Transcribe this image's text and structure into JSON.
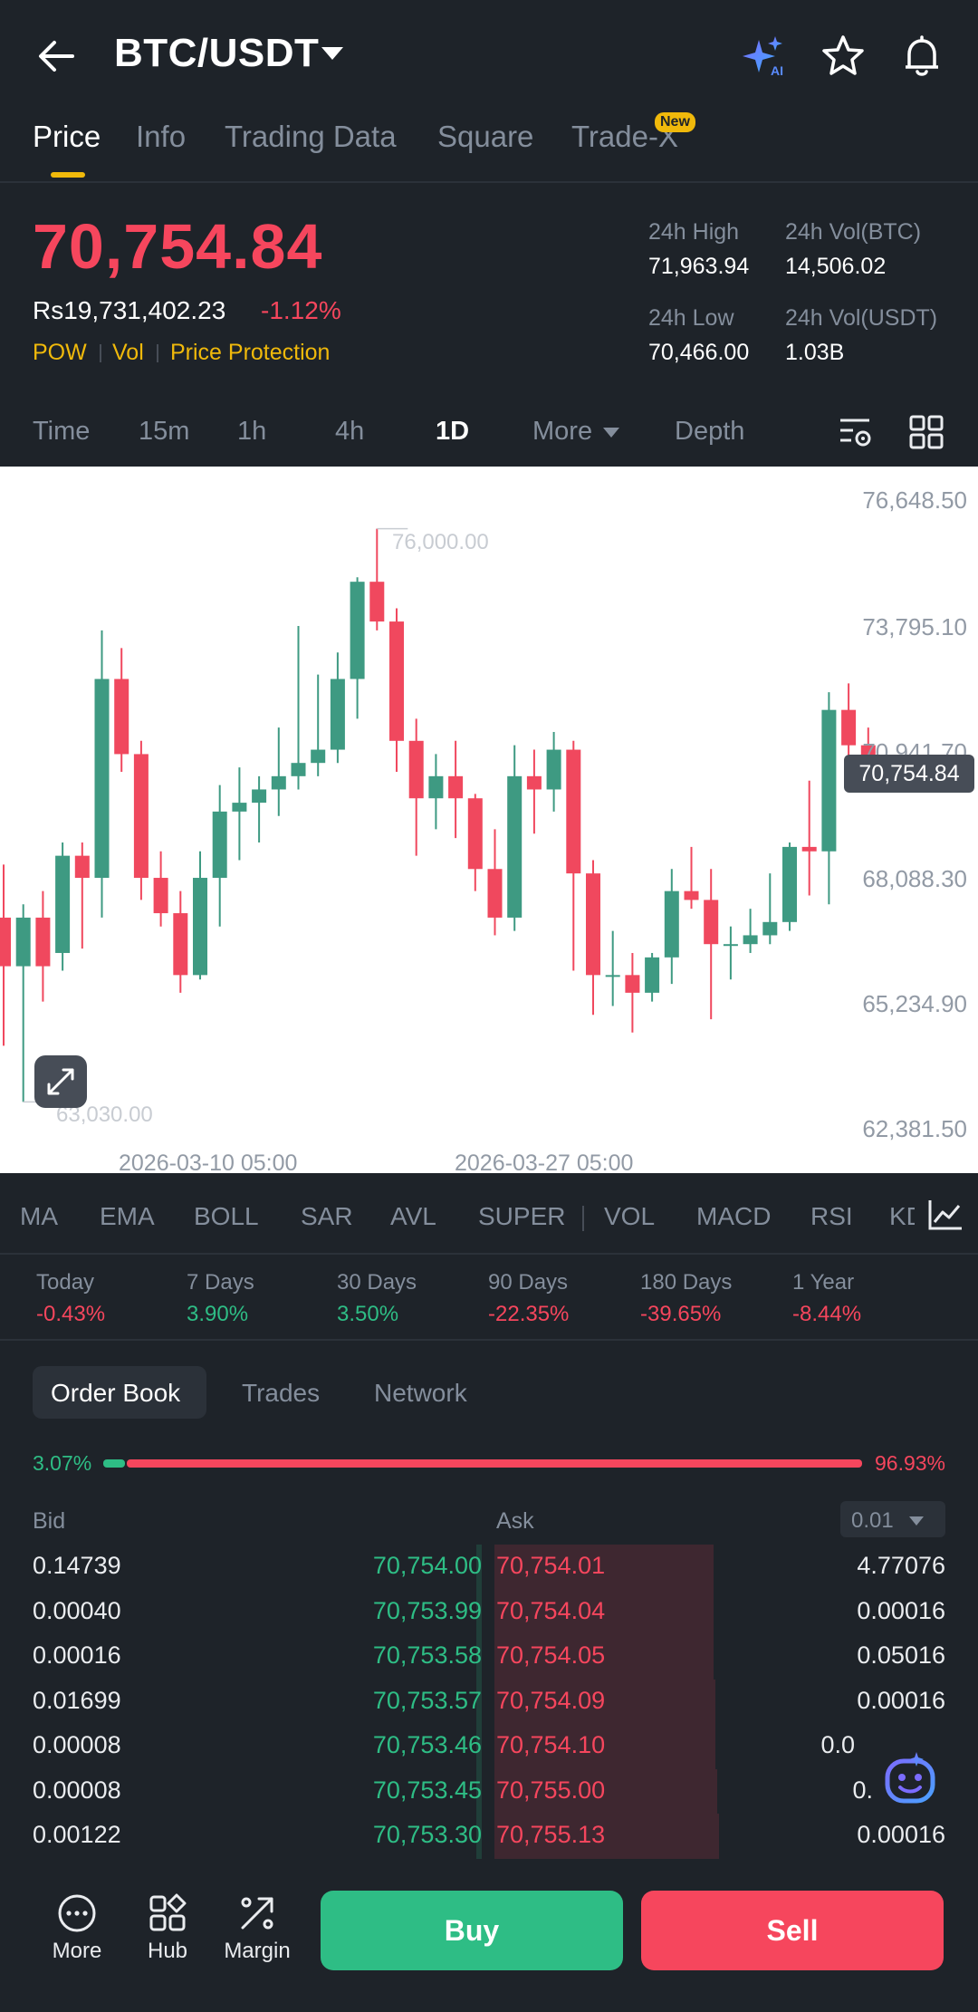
{
  "header": {
    "pair": "BTC/USDT",
    "icons": [
      "back-arrow-icon",
      "ai-sparkle-icon",
      "star-icon",
      "bell-icon"
    ]
  },
  "tabs": [
    {
      "label": "Price",
      "active": true
    },
    {
      "label": "Info"
    },
    {
      "label": "Trading Data"
    },
    {
      "label": "Square"
    },
    {
      "label": "Trade-X",
      "badge": "New"
    }
  ],
  "price": {
    "last": "70,754.84",
    "fiat": "Rs19,731,402.23",
    "change": "-1.12%",
    "tags": [
      "POW",
      "Vol",
      "Price Protection"
    ]
  },
  "stats": {
    "high_label": "24h High",
    "high": "71,963.94",
    "volbtc_label": "24h Vol(BTC)",
    "volbtc": "14,506.02",
    "low_label": "24h Low",
    "low": "70,466.00",
    "volusdt_label": "24h Vol(USDT)",
    "volusdt": "1.03B"
  },
  "intervals": {
    "items": [
      "Time",
      "15m",
      "1h",
      "4h",
      "1D",
      "More",
      "Depth"
    ],
    "active": "1D"
  },
  "chart_data": {
    "type": "candlestick",
    "y_ticks": [
      "76,648.50",
      "73,795.10",
      "70,941.70",
      "68,088.30",
      "65,234.90",
      "62,381.50"
    ],
    "ylim": [
      62381.5,
      76648.5
    ],
    "x_ticks": [
      "2026-03-10 05:00",
      "2026-03-27 05:00"
    ],
    "current_price": "70,754.84",
    "high_marker": "76,000.00",
    "low_marker": "63,030.00",
    "colors": {
      "up": "#3e9a82",
      "down": "#f0485e"
    },
    "candles": [
      {
        "o": 67200,
        "h": 68400,
        "l": 64300,
        "c": 66100
      },
      {
        "o": 66100,
        "h": 67500,
        "l": 63030,
        "c": 67200
      },
      {
        "o": 67200,
        "h": 67800,
        "l": 65300,
        "c": 66100
      },
      {
        "o": 66400,
        "h": 68900,
        "l": 66000,
        "c": 68600
      },
      {
        "o": 68600,
        "h": 68900,
        "l": 66500,
        "c": 68100
      },
      {
        "o": 68100,
        "h": 73700,
        "l": 67200,
        "c": 72600
      },
      {
        "o": 72600,
        "h": 73300,
        "l": 70500,
        "c": 70900
      },
      {
        "o": 70900,
        "h": 71200,
        "l": 67600,
        "c": 68100
      },
      {
        "o": 68100,
        "h": 68700,
        "l": 67000,
        "c": 67300
      },
      {
        "o": 67300,
        "h": 67800,
        "l": 65500,
        "c": 65900
      },
      {
        "o": 65900,
        "h": 68700,
        "l": 65800,
        "c": 68100
      },
      {
        "o": 68100,
        "h": 70200,
        "l": 67000,
        "c": 69600
      },
      {
        "o": 69600,
        "h": 70600,
        "l": 68500,
        "c": 69800
      },
      {
        "o": 69800,
        "h": 70400,
        "l": 68900,
        "c": 70100
      },
      {
        "o": 70100,
        "h": 71500,
        "l": 69500,
        "c": 70400
      },
      {
        "o": 70400,
        "h": 73800,
        "l": 70100,
        "c": 70700
      },
      {
        "o": 70700,
        "h": 72700,
        "l": 70400,
        "c": 71000
      },
      {
        "o": 71000,
        "h": 73200,
        "l": 70700,
        "c": 72600
      },
      {
        "o": 72600,
        "h": 74900,
        "l": 71700,
        "c": 74800
      },
      {
        "o": 74800,
        "h": 76000,
        "l": 73700,
        "c": 73900
      },
      {
        "o": 73900,
        "h": 74200,
        "l": 70500,
        "c": 71200
      },
      {
        "o": 71200,
        "h": 71700,
        "l": 68600,
        "c": 69900
      },
      {
        "o": 69900,
        "h": 70900,
        "l": 69200,
        "c": 70400
      },
      {
        "o": 70400,
        "h": 71200,
        "l": 69000,
        "c": 69900
      },
      {
        "o": 69900,
        "h": 70000,
        "l": 67800,
        "c": 68300
      },
      {
        "o": 68300,
        "h": 69200,
        "l": 66800,
        "c": 67200
      },
      {
        "o": 67200,
        "h": 71100,
        "l": 66900,
        "c": 70400
      },
      {
        "o": 70400,
        "h": 71000,
        "l": 69100,
        "c": 70100
      },
      {
        "o": 70100,
        "h": 71400,
        "l": 69600,
        "c": 71000
      },
      {
        "o": 71000,
        "h": 71200,
        "l": 66000,
        "c": 68200
      },
      {
        "o": 68200,
        "h": 68500,
        "l": 65000,
        "c": 65900
      },
      {
        "o": 65900,
        "h": 66900,
        "l": 65200,
        "c": 65900
      },
      {
        "o": 65900,
        "h": 66400,
        "l": 64600,
        "c": 65500
      },
      {
        "o": 65500,
        "h": 66400,
        "l": 65300,
        "c": 66300
      },
      {
        "o": 66300,
        "h": 68300,
        "l": 65700,
        "c": 67800
      },
      {
        "o": 67800,
        "h": 68800,
        "l": 67400,
        "c": 67600
      },
      {
        "o": 67600,
        "h": 68300,
        "l": 64900,
        "c": 66600
      },
      {
        "o": 66600,
        "h": 67000,
        "l": 65800,
        "c": 66600
      },
      {
        "o": 66600,
        "h": 67400,
        "l": 66400,
        "c": 66800
      },
      {
        "o": 66800,
        "h": 68200,
        "l": 66600,
        "c": 67100
      },
      {
        "o": 67100,
        "h": 68900,
        "l": 66900,
        "c": 68800
      },
      {
        "o": 68800,
        "h": 70300,
        "l": 67700,
        "c": 68700
      },
      {
        "o": 68700,
        "h": 72300,
        "l": 67500,
        "c": 71900
      },
      {
        "o": 71900,
        "h": 72500,
        "l": 70800,
        "c": 71100
      },
      {
        "o": 71100,
        "h": 71500,
        "l": 70400,
        "c": 70754.84
      }
    ]
  },
  "indicators": [
    "MA",
    "EMA",
    "BOLL",
    "SAR",
    "AVL",
    "SUPER",
    "VOL",
    "MACD",
    "RSI",
    "KD"
  ],
  "performance": [
    {
      "label": "Today",
      "value": "-0.43%",
      "dir": "down"
    },
    {
      "label": "7 Days",
      "value": "3.90%",
      "dir": "up"
    },
    {
      "label": "30 Days",
      "value": "3.50%",
      "dir": "up"
    },
    {
      "label": "90 Days",
      "value": "-22.35%",
      "dir": "down"
    },
    {
      "label": "180 Days",
      "value": "-39.65%",
      "dir": "down"
    },
    {
      "label": "1 Year",
      "value": "-8.44%",
      "dir": "down"
    }
  ],
  "orderbook": {
    "tabs": [
      "Order Book",
      "Trades",
      "Network"
    ],
    "bid_ratio": "3.07%",
    "ask_ratio": "96.93%",
    "bid_label": "Bid",
    "ask_label": "Ask",
    "precision": "0.01",
    "rows": [
      {
        "bid_qty": "0.14739",
        "bid_price": "70,754.00",
        "ask_price": "70,754.01",
        "ask_qty": "4.77076"
      },
      {
        "bid_qty": "0.00040",
        "bid_price": "70,753.99",
        "ask_price": "70,754.04",
        "ask_qty": "0.00016"
      },
      {
        "bid_qty": "0.00016",
        "bid_price": "70,753.58",
        "ask_price": "70,754.05",
        "ask_qty": "0.05016"
      },
      {
        "bid_qty": "0.01699",
        "bid_price": "70,753.57",
        "ask_price": "70,754.09",
        "ask_qty": "0.00016"
      },
      {
        "bid_qty": "0.00008",
        "bid_price": "70,753.46",
        "ask_price": "70,754.10",
        "ask_qty": "0.0"
      },
      {
        "bid_qty": "0.00008",
        "bid_price": "70,753.45",
        "ask_price": "70,755.00",
        "ask_qty": "0."
      },
      {
        "bid_qty": "0.00122",
        "bid_price": "70,753.30",
        "ask_price": "70,755.13",
        "ask_qty": "0.00016"
      }
    ]
  },
  "bottom_nav": {
    "more": "More",
    "hub": "Hub",
    "margin": "Margin",
    "buy": "Buy",
    "sell": "Sell"
  }
}
